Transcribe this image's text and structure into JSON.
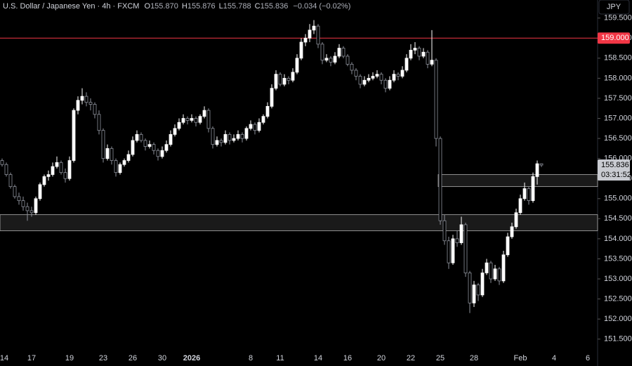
{
  "chart_data": {
    "type": "candlestick",
    "title": "U.S. Dollar / Japanese Yen · 4h · FXCM",
    "ohlc_header": {
      "labels": [
        "O",
        "H",
        "L",
        "C"
      ],
      "values": [
        "155.870",
        "155.876",
        "155.788",
        "155.836"
      ],
      "change": "−0.034 (−0.02%)"
    },
    "currency": "JPY",
    "countdown": "03:31:52",
    "up_color": "#ffffff",
    "down_color": "#8d909a",
    "level": {
      "value": 159.0,
      "label": "159.000",
      "color": "#f23645"
    },
    "zones": [
      {
        "top": 154.6,
        "bottom": 154.2
      },
      {
        "top": 155.6,
        "bottom": 155.3
      }
    ],
    "ylim": [
      151.25,
      159.95
    ],
    "yticks": [
      {
        "value": 151.5,
        "label": "151.500"
      },
      {
        "value": 152.0,
        "label": "152.000"
      },
      {
        "value": 152.5,
        "label": "152.500"
      },
      {
        "value": 153.0,
        "label": "153.000"
      },
      {
        "value": 153.5,
        "label": "153.500"
      },
      {
        "value": 154.0,
        "label": "154.000"
      },
      {
        "value": 154.5,
        "label": "154.500"
      },
      {
        "value": 155.0,
        "label": "155.000"
      },
      {
        "value": 155.5,
        "label": "155.500"
      },
      {
        "value": 156.0,
        "label": "156.000"
      },
      {
        "value": 156.5,
        "label": "156.500"
      },
      {
        "value": 157.0,
        "label": "157.000"
      },
      {
        "value": 157.5,
        "label": "157.500"
      },
      {
        "value": 158.0,
        "label": "158.000"
      },
      {
        "value": 158.5,
        "label": "158.500"
      },
      {
        "value": 159.0,
        "label": "159.000"
      },
      {
        "value": 159.5,
        "label": "159.500"
      }
    ],
    "categories": [
      "14",
      null,
      null,
      null,
      null,
      null,
      null,
      "17",
      null,
      null,
      null,
      null,
      null,
      null,
      null,
      null,
      "19",
      null,
      null,
      null,
      null,
      null,
      null,
      null,
      "23",
      null,
      null,
      null,
      null,
      null,
      null,
      "26",
      null,
      null,
      null,
      null,
      null,
      null,
      "30",
      null,
      null,
      null,
      null,
      null,
      null,
      "2026",
      null,
      null,
      null,
      null,
      null,
      null,
      null,
      null,
      null,
      null,
      null,
      null,
      null,
      "8",
      null,
      null,
      null,
      null,
      null,
      null,
      "11",
      null,
      null,
      null,
      null,
      null,
      null,
      null,
      null,
      "14",
      null,
      null,
      null,
      null,
      null,
      null,
      "16",
      null,
      null,
      null,
      null,
      null,
      null,
      null,
      "20",
      null,
      null,
      null,
      null,
      null,
      null,
      "22",
      null,
      null,
      null,
      null,
      null,
      null,
      "25",
      null,
      null,
      null,
      null,
      null,
      null,
      null,
      "28",
      null,
      null,
      null,
      null,
      null,
      null,
      null,
      null,
      null,
      null,
      "Feb",
      null,
      null,
      null,
      null,
      null,
      null,
      null,
      "4",
      null,
      null,
      null,
      null,
      null,
      null,
      null,
      "6"
    ],
    "ohlc": [
      [
        155.95,
        156.0,
        155.8,
        155.85
      ],
      [
        155.85,
        155.9,
        155.55,
        155.6
      ],
      [
        155.6,
        155.65,
        155.25,
        155.3
      ],
      [
        155.3,
        155.35,
        155.0,
        155.05
      ],
      [
        155.05,
        155.15,
        154.85,
        154.95
      ],
      [
        154.95,
        155.05,
        154.7,
        154.8
      ],
      [
        154.8,
        154.9,
        154.45,
        154.7
      ],
      [
        154.7,
        154.8,
        154.55,
        154.65
      ],
      [
        154.65,
        155.05,
        154.6,
        155.0
      ],
      [
        155.0,
        155.4,
        154.95,
        155.35
      ],
      [
        155.35,
        155.6,
        155.3,
        155.55
      ],
      [
        155.55,
        155.7,
        155.45,
        155.6
      ],
      [
        155.6,
        155.9,
        155.55,
        155.8
      ],
      [
        155.8,
        156.05,
        155.75,
        155.9
      ],
      [
        155.9,
        155.95,
        155.6,
        155.65
      ],
      [
        155.65,
        155.75,
        155.4,
        155.5
      ],
      [
        155.5,
        156.05,
        155.45,
        155.95
      ],
      [
        155.95,
        157.25,
        155.9,
        157.2
      ],
      [
        157.2,
        157.55,
        157.1,
        157.45
      ],
      [
        157.45,
        157.75,
        157.35,
        157.55
      ],
      [
        157.55,
        157.65,
        157.3,
        157.4
      ],
      [
        157.4,
        157.5,
        157.2,
        157.35
      ],
      [
        157.35,
        157.4,
        157.0,
        157.1
      ],
      [
        157.1,
        157.2,
        156.6,
        156.7
      ],
      [
        156.7,
        156.75,
        155.9,
        156.0
      ],
      [
        156.0,
        156.35,
        155.95,
        156.25
      ],
      [
        156.25,
        156.3,
        155.85,
        155.95
      ],
      [
        155.95,
        156.0,
        155.55,
        155.65
      ],
      [
        155.65,
        155.9,
        155.6,
        155.85
      ],
      [
        155.85,
        156.0,
        155.8,
        155.95
      ],
      [
        155.95,
        156.2,
        155.9,
        156.1
      ],
      [
        156.1,
        156.55,
        156.05,
        156.45
      ],
      [
        156.45,
        156.7,
        156.4,
        156.6
      ],
      [
        156.6,
        156.65,
        156.4,
        156.45
      ],
      [
        156.45,
        156.5,
        156.2,
        156.3
      ],
      [
        156.3,
        156.45,
        156.25,
        156.35
      ],
      [
        156.35,
        156.4,
        156.1,
        156.2
      ],
      [
        156.2,
        156.25,
        155.95,
        156.05
      ],
      [
        156.05,
        156.3,
        156.0,
        156.2
      ],
      [
        156.2,
        156.45,
        156.15,
        156.35
      ],
      [
        156.35,
        156.7,
        156.3,
        156.6
      ],
      [
        156.6,
        156.85,
        156.55,
        156.75
      ],
      [
        156.75,
        157.0,
        156.7,
        156.9
      ],
      [
        156.9,
        157.1,
        156.85,
        157.0
      ],
      [
        157.0,
        157.05,
        156.85,
        156.95
      ],
      [
        156.95,
        157.1,
        156.9,
        157.0
      ],
      [
        157.0,
        157.05,
        156.8,
        156.9
      ],
      [
        156.9,
        157.1,
        156.85,
        157.05
      ],
      [
        157.05,
        157.3,
        157.0,
        157.2
      ],
      [
        157.2,
        157.25,
        156.65,
        156.75
      ],
      [
        156.75,
        156.8,
        156.25,
        156.35
      ],
      [
        156.35,
        156.55,
        156.3,
        156.45
      ],
      [
        156.45,
        156.5,
        156.3,
        156.4
      ],
      [
        156.4,
        156.7,
        156.35,
        156.6
      ],
      [
        156.6,
        156.65,
        156.35,
        156.45
      ],
      [
        156.45,
        156.6,
        156.4,
        156.5
      ],
      [
        156.5,
        156.7,
        156.45,
        156.6
      ],
      [
        156.6,
        156.65,
        156.4,
        156.5
      ],
      [
        156.5,
        156.8,
        156.45,
        156.75
      ],
      [
        156.75,
        156.95,
        156.7,
        156.85
      ],
      [
        156.85,
        156.9,
        156.6,
        156.7
      ],
      [
        156.7,
        157.0,
        156.65,
        156.9
      ],
      [
        156.9,
        157.1,
        156.85,
        157.05
      ],
      [
        157.05,
        157.4,
        157.0,
        157.3
      ],
      [
        157.3,
        157.85,
        157.25,
        157.75
      ],
      [
        157.75,
        158.2,
        157.7,
        158.1
      ],
      [
        158.1,
        158.15,
        157.8,
        157.85
      ],
      [
        157.85,
        158.1,
        157.8,
        158.0
      ],
      [
        158.0,
        158.05,
        157.85,
        157.95
      ],
      [
        157.95,
        158.25,
        157.9,
        158.15
      ],
      [
        158.15,
        158.6,
        158.1,
        158.5
      ],
      [
        158.5,
        159.0,
        158.45,
        158.9
      ],
      [
        158.9,
        159.1,
        158.8,
        159.0
      ],
      [
        159.0,
        159.35,
        158.9,
        159.2
      ],
      [
        159.2,
        159.45,
        159.1,
        159.3
      ],
      [
        159.3,
        159.35,
        158.75,
        158.85
      ],
      [
        158.85,
        158.9,
        158.35,
        158.45
      ],
      [
        158.45,
        158.6,
        158.4,
        158.5
      ],
      [
        158.5,
        158.55,
        158.3,
        158.4
      ],
      [
        158.4,
        158.65,
        158.35,
        158.55
      ],
      [
        158.55,
        158.85,
        158.5,
        158.75
      ],
      [
        158.75,
        158.8,
        158.5,
        158.55
      ],
      [
        158.55,
        158.6,
        158.3,
        158.35
      ],
      [
        158.35,
        158.4,
        158.1,
        158.2
      ],
      [
        158.2,
        158.25,
        157.95,
        158.05
      ],
      [
        158.05,
        158.1,
        157.75,
        157.85
      ],
      [
        157.85,
        158.05,
        157.8,
        157.95
      ],
      [
        157.95,
        158.1,
        157.9,
        158.0
      ],
      [
        158.0,
        158.15,
        157.95,
        158.05
      ],
      [
        158.05,
        158.2,
        158.0,
        158.1
      ],
      [
        158.1,
        158.15,
        157.85,
        157.95
      ],
      [
        157.95,
        158.0,
        157.65,
        157.75
      ],
      [
        157.75,
        158.05,
        157.7,
        157.95
      ],
      [
        157.95,
        158.2,
        157.9,
        158.1
      ],
      [
        158.1,
        158.15,
        157.95,
        158.05
      ],
      [
        158.05,
        158.3,
        158.0,
        158.2
      ],
      [
        158.2,
        158.6,
        158.15,
        158.5
      ],
      [
        158.5,
        158.85,
        158.45,
        158.7
      ],
      [
        158.7,
        158.9,
        158.6,
        158.75
      ],
      [
        158.75,
        158.8,
        158.45,
        158.55
      ],
      [
        158.55,
        158.75,
        158.5,
        158.65
      ],
      [
        158.65,
        158.7,
        158.25,
        158.35
      ],
      [
        158.35,
        159.2,
        158.3,
        158.45
      ],
      [
        158.45,
        158.5,
        156.3,
        156.5
      ],
      [
        156.5,
        156.55,
        154.35,
        154.45
      ],
      [
        154.45,
        154.6,
        153.85,
        153.95
      ],
      [
        153.95,
        154.05,
        153.25,
        153.4
      ],
      [
        153.4,
        154.1,
        153.35,
        154.0
      ],
      [
        154.0,
        154.2,
        153.8,
        153.9
      ],
      [
        153.9,
        154.55,
        153.85,
        154.35
      ],
      [
        154.35,
        154.4,
        153.05,
        153.15
      ],
      [
        153.15,
        153.2,
        152.15,
        152.4
      ],
      [
        152.4,
        152.95,
        152.3,
        152.85
      ],
      [
        152.85,
        152.9,
        152.45,
        152.6
      ],
      [
        152.6,
        153.25,
        152.55,
        153.15
      ],
      [
        153.15,
        153.5,
        153.1,
        153.4
      ],
      [
        153.4,
        153.45,
        152.9,
        153.0
      ],
      [
        153.0,
        153.35,
        152.95,
        153.25
      ],
      [
        153.25,
        153.3,
        152.85,
        152.95
      ],
      [
        152.95,
        153.7,
        152.9,
        153.6
      ],
      [
        153.6,
        154.15,
        153.55,
        154.05
      ],
      [
        154.05,
        154.4,
        154.0,
        154.3
      ],
      [
        154.3,
        154.75,
        154.25,
        154.65
      ],
      [
        154.65,
        155.1,
        154.6,
        155.0
      ],
      [
        155.0,
        155.4,
        154.95,
        155.25
      ],
      [
        155.25,
        155.3,
        154.85,
        154.95
      ],
      [
        154.95,
        155.65,
        154.9,
        155.55
      ],
      [
        155.55,
        155.95,
        155.35,
        155.87
      ],
      [
        155.87,
        155.876,
        155.788,
        155.836
      ],
      null,
      null,
      null,
      null,
      null,
      null,
      null,
      null,
      null,
      null,
      null
    ]
  }
}
